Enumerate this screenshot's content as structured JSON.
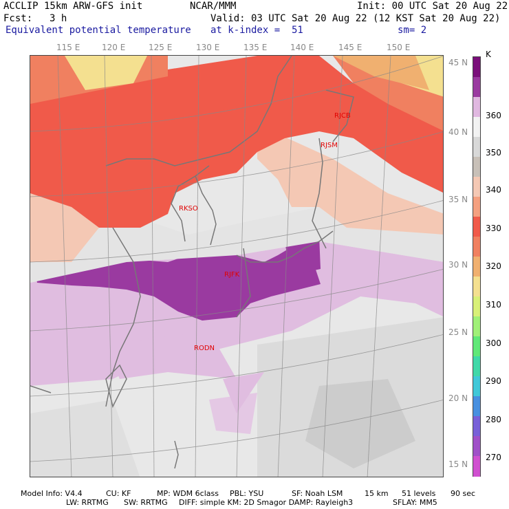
{
  "header": {
    "model": "ACCLIP 15km ARW-GFS init",
    "org": "NCAR/MMM",
    "init": "Init: 00 UTC Sat 20 Aug 22",
    "fcst_label": "Fcst:",
    "fcst_value": "3 h",
    "valid": "Valid: 03 UTC Sat 20 Aug 22 (12 KST Sat 20 Aug 22)",
    "field": "Equivalent potential temperature",
    "level": "at k-index =  51",
    "smooth": "sm= 2"
  },
  "lon_ticks": [
    "115 E",
    "120 E",
    "125 E",
    "130 E",
    "135 E",
    "140 E",
    "145 E",
    "150 E"
  ],
  "lat_ticks": [
    "45 N",
    "40 N",
    "35 N",
    "30 N",
    "25 N",
    "20 N",
    "15 N"
  ],
  "stations": [
    {
      "id": "RJCB"
    },
    {
      "id": "RJSM"
    },
    {
      "id": "RKSO"
    },
    {
      "id": "RJFK"
    },
    {
      "id": "RODN"
    }
  ],
  "colorbar": {
    "unit": "K",
    "labels": [
      "360",
      "350",
      "340",
      "330",
      "320",
      "310",
      "300",
      "290",
      "280",
      "270"
    ],
    "colors": [
      "#7a0f7a",
      "#9a3aa0",
      "#e0b8e0",
      "#f2f2f2",
      "#d8d8d8",
      "#c8c0b8",
      "#f4c8b4",
      "#f4a080",
      "#f05a4a",
      "#f08060",
      "#f0b070",
      "#f4e090",
      "#d8f078",
      "#a0f078",
      "#60e878",
      "#40d8a8",
      "#40c8d8",
      "#4890e0",
      "#7860d8",
      "#a050c8",
      "#d050d0"
    ]
  },
  "footer": {
    "line1": [
      "Model Info: V4.4",
      "CU: KF",
      "MP: WDM 6class",
      "PBL: YSU",
      "SF: Noah LSM",
      "15 km",
      "51 levels",
      "90 sec"
    ],
    "line2": [
      "LW: RRTMG",
      "SW: RRTMG",
      "DIFF: simple KM: 2D Smagor DAMP: Rayleigh3",
      "SFLAY: MM5"
    ]
  }
}
